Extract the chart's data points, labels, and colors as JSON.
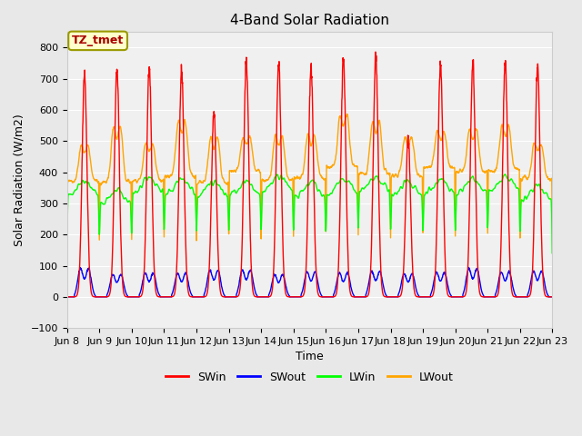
{
  "title": "4-Band Solar Radiation",
  "xlabel": "Time",
  "ylabel": "Solar Radiation (W/m2)",
  "ylim": [
    -100,
    850
  ],
  "n_days": 15,
  "x_tick_labels": [
    "Jun 8",
    "Jun 9",
    "Jun 10",
    "Jun 11",
    "Jun 12",
    "Jun 13",
    "Jun 14",
    "Jun 15",
    "Jun 16",
    "Jun 17",
    "Jun 18",
    "Jun 19",
    "Jun 20",
    "Jun 21",
    "Jun 22",
    "Jun 23"
  ],
  "legend_labels": [
    "SWin",
    "SWout",
    "LWin",
    "LWout"
  ],
  "annotation_text": "TZ_tmet",
  "annotation_box_color": "#ffffcc",
  "annotation_border_color": "#999900",
  "bg_color": "#e8e8e8",
  "plot_bg_color": "#f0f0f0",
  "grid_color": "#ffffff",
  "SWin_color": "#ff0000",
  "SWout_color": "#0000ff",
  "LWin_color": "#00ff00",
  "LWout_color": "#ffa500",
  "line_width": 1.0,
  "title_fontsize": 11,
  "axis_fontsize": 9,
  "tick_fontsize": 8,
  "legend_fontsize": 9
}
